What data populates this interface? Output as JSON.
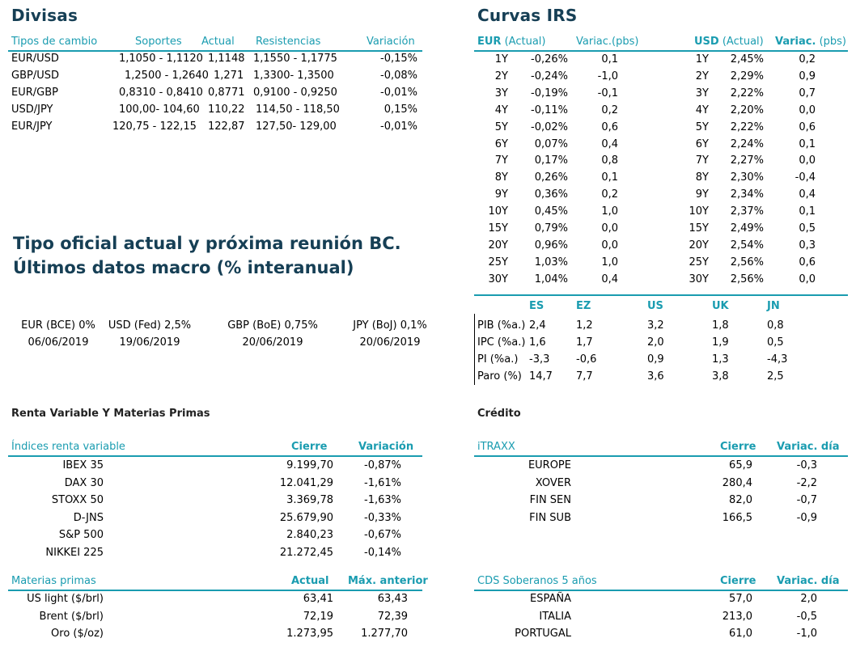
{
  "divisas": {
    "title": "Divisas",
    "headers": [
      "Tipos de cambio",
      "Soportes",
      "Actual",
      "Resistencias",
      "Variación"
    ],
    "rows": [
      [
        "EUR/USD",
        "1,1050 - 1,1120",
        "1,1148",
        "1,1550 - 1,1775",
        "-0,15%"
      ],
      [
        "GBP/USD",
        "1,2500 - 1,2640",
        "1,271",
        "1,3300- 1,3500",
        "-0,08%"
      ],
      [
        "EUR/GBP",
        "0,8310 - 0,8410",
        "0,8771",
        "0,9100 - 0,9250",
        "-0,01%"
      ],
      [
        "USD/JPY",
        "100,00- 104,60",
        "110,22",
        "114,50 - 118,50",
        "0,15%"
      ],
      [
        "EUR/JPY",
        "120,75 - 122,15",
        "122,87",
        "127,50- 129,00",
        "-0,01%"
      ]
    ]
  },
  "irs": {
    "title": "Curvas IRS",
    "eur_label": "EUR",
    "eur_sub": "(Actual)",
    "variac_pbs": "Variac.(pbs)",
    "usd_label": "USD",
    "usd_sub": "(Actual)",
    "variac_bold": "Variac.",
    "variac_pbs2": "(pbs)",
    "rows": [
      [
        "1Y",
        "-0,26%",
        "0,1",
        "1Y",
        "2,45%",
        "0,2"
      ],
      [
        "2Y",
        "-0,24%",
        "-1,0",
        "2Y",
        "2,29%",
        "0,9"
      ],
      [
        "3Y",
        "-0,19%",
        "-0,1",
        "3Y",
        "2,22%",
        "0,7"
      ],
      [
        "4Y",
        "-0,11%",
        "0,2",
        "4Y",
        "2,20%",
        "0,0"
      ],
      [
        "5Y",
        "-0,02%",
        "0,6",
        "5Y",
        "2,22%",
        "0,6"
      ],
      [
        "6Y",
        "0,07%",
        "0,4",
        "6Y",
        "2,24%",
        "0,1"
      ],
      [
        "7Y",
        "0,17%",
        "0,8",
        "7Y",
        "2,27%",
        "0,0"
      ],
      [
        "8Y",
        "0,26%",
        "0,1",
        "8Y",
        "2,30%",
        "-0,4"
      ],
      [
        "9Y",
        "0,36%",
        "0,2",
        "9Y",
        "2,34%",
        "0,4"
      ],
      [
        "10Y",
        "0,45%",
        "1,0",
        "10Y",
        "2,37%",
        "0,1"
      ],
      [
        "15Y",
        "0,79%",
        "0,0",
        "15Y",
        "2,49%",
        "0,5"
      ],
      [
        "20Y",
        "0,96%",
        "0,0",
        "20Y",
        "2,54%",
        "0,3"
      ],
      [
        "25Y",
        "1,03%",
        "1,0",
        "25Y",
        "2,56%",
        "0,6"
      ],
      [
        "30Y",
        "1,04%",
        "0,4",
        "30Y",
        "2,56%",
        "0,0"
      ]
    ]
  },
  "tipo": {
    "line1": "Tipo oficial actual y próxima reunión BC.",
    "line2": "Últimos datos macro (% interanual)",
    "items": [
      {
        "label": "EUR (BCE) 0%",
        "date": "06/06/2019"
      },
      {
        "label": "USD (Fed) 2,5%",
        "date": "19/06/2019"
      },
      {
        "label": "GBP (BoE) 0,75%",
        "date": "20/06/2019"
      },
      {
        "label": "JPY (BoJ) 0,1%",
        "date": "20/06/2019"
      }
    ]
  },
  "macro": {
    "countries": [
      "ES",
      "EZ",
      "US",
      "UK",
      "JN"
    ],
    "rows": [
      [
        "PIB (%a.)",
        "2,4",
        "1,2",
        "3,2",
        "1,8",
        "0,8"
      ],
      [
        "IPC (%a.)",
        "1,6",
        "1,7",
        "2,0",
        "1,9",
        "0,5"
      ],
      [
        "PI (%a.)",
        "-3,3",
        "-0,6",
        "0,9",
        "1,3",
        "-4,3"
      ],
      [
        "Paro (%)",
        "14,7",
        "7,7",
        "3,6",
        "3,8",
        "2,5"
      ]
    ]
  },
  "renta": {
    "title": "Renta Variable Y Materias Primas",
    "headers": [
      "Índices renta variable",
      "Cierre",
      "Variación"
    ],
    "rows": [
      [
        "IBEX 35",
        "9.199,70",
        "-0,87%"
      ],
      [
        "DAX 30",
        "12.041,29",
        "-1,61%"
      ],
      [
        "STOXX 50",
        "3.369,78",
        "-1,63%"
      ],
      [
        "D-JNS",
        "25.679,90",
        "-0,33%"
      ],
      [
        "S&P 500",
        "2.840,23",
        "-0,67%"
      ],
      [
        "NIKKEI 225",
        "21.272,45",
        "-0,14%"
      ]
    ]
  },
  "materias": {
    "headers": [
      "Materias primas",
      "Actual",
      "Máx. anterior"
    ],
    "rows": [
      [
        "US light ($/brl)",
        "63,41",
        "63,43"
      ],
      [
        "Brent ($/brl)",
        "72,19",
        "72,39"
      ],
      [
        "Oro ($/oz)",
        "1.273,95",
        "1.277,70"
      ]
    ]
  },
  "credito": {
    "title": "Crédito",
    "headers": [
      "iTRAXX",
      "Cierre",
      "Variac. día"
    ],
    "rows": [
      [
        "EUROPE",
        "65,9",
        "-0,3"
      ],
      [
        "XOVER",
        "280,4",
        "-2,2"
      ],
      [
        "FIN SEN",
        "82,0",
        "-0,7"
      ],
      [
        "FIN SUB",
        "166,5",
        "-0,9"
      ]
    ]
  },
  "cds": {
    "headers": [
      "CDS Soberanos 5 años",
      "Cierre",
      "Variac. día"
    ],
    "rows": [
      [
        "ESPAÑA",
        "57,0",
        "2,0"
      ],
      [
        "ITALIA",
        "213,0",
        "-0,5"
      ],
      [
        "PORTUGAL",
        "61,0",
        "-1,0"
      ]
    ]
  }
}
